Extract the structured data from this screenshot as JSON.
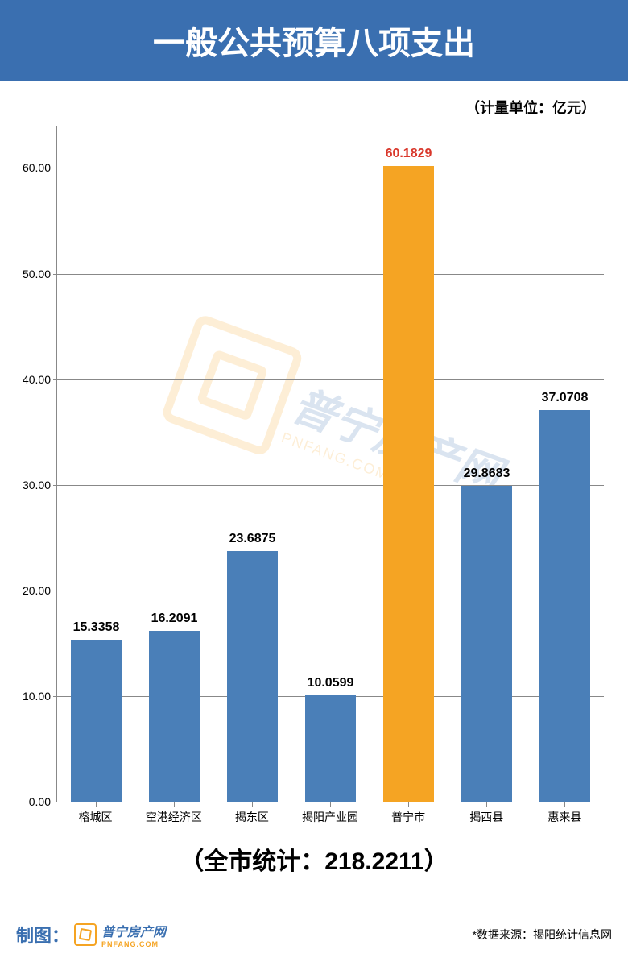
{
  "header": {
    "title": "一般公共预算八项支出",
    "bg_color": "#3a6fb0",
    "text_color": "#ffffff",
    "fontsize": 40
  },
  "unit_label": "（计量单位：亿元）",
  "unit_fontsize": 18,
  "chart": {
    "type": "bar",
    "categories": [
      "榕城区",
      "空港经济区",
      "揭东区",
      "揭阳产业园",
      "普宁市",
      "揭西县",
      "惠来县"
    ],
    "values": [
      15.3358,
      16.2091,
      23.6875,
      10.0599,
      60.1829,
      29.8683,
      37.0708
    ],
    "value_labels": [
      "15.3358",
      "16.2091",
      "23.6875",
      "10.0599",
      "60.1829",
      "29.8683",
      "37.0708"
    ],
    "bar_colors": [
      "#4a7fb8",
      "#4a7fb8",
      "#4a7fb8",
      "#4a7fb8",
      "#f5a423",
      "#4a7fb8",
      "#4a7fb8"
    ],
    "label_colors": [
      "#000000",
      "#000000",
      "#000000",
      "#000000",
      "#d9372b",
      "#000000",
      "#000000"
    ],
    "ymin": 0,
    "ymax": 64,
    "yticks": [
      0.0,
      10.0,
      20.0,
      30.0,
      40.0,
      50.0,
      60.0
    ],
    "ytick_labels": [
      "0.00",
      "10.00",
      "20.00",
      "30.00",
      "40.00",
      "50.00",
      "60.00"
    ],
    "grid_color": "#888888",
    "bar_width_ratio": 0.64,
    "label_fontsize": 16,
    "xtick_fontsize": 14,
    "ytick_fontsize": 14
  },
  "footer": {
    "total_text": "（全市统计：218.2211）",
    "total_fontsize": 30,
    "credit_prefix": "制图：",
    "brand_main": "普宁房产网",
    "brand_sub": "PNFANG.COM",
    "source_text": "*数据来源：揭阳统计信息网",
    "source_fontsize": 14
  },
  "watermark": {
    "text": "普宁房产网",
    "sub": "PNFANG.COM",
    "color_primary": "#3a6fb0",
    "color_accent": "#f5a423",
    "opacity": 0.18
  }
}
